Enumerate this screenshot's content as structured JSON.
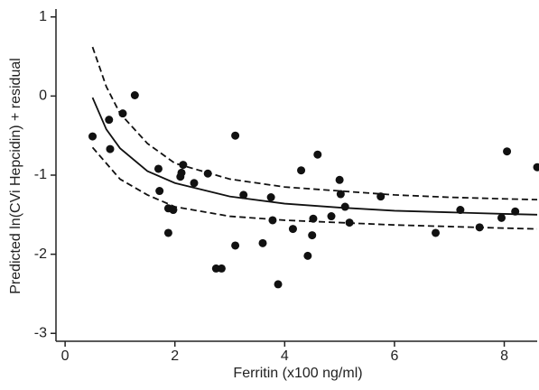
{
  "chart_data": {
    "type": "scatter",
    "xlabel": "Ferritin (x100 ng/ml)",
    "ylabel": "Predicted ln(CVi Hepcidin) + residual",
    "x": [
      0.5,
      0.8,
      0.82,
      1.05,
      1.27,
      1.7,
      1.72,
      1.88,
      1.88,
      1.97,
      2.1,
      2.12,
      2.15,
      2.35,
      2.6,
      2.75,
      2.85,
      3.1,
      3.1,
      3.25,
      3.6,
      3.75,
      3.78,
      3.88,
      4.15,
      4.3,
      4.42,
      4.5,
      4.52,
      4.6,
      4.85,
      5.0,
      5.02,
      5.1,
      5.18,
      5.75,
      6.75,
      7.2,
      7.55,
      7.95,
      8.05,
      8.2,
      8.6
    ],
    "values": [
      -0.51,
      -0.3,
      -0.67,
      -0.22,
      0.01,
      -0.92,
      -1.2,
      -1.42,
      -1.73,
      -1.44,
      -1.02,
      -0.97,
      -0.87,
      -1.1,
      -0.98,
      -2.18,
      -2.18,
      -0.5,
      -1.89,
      -1.25,
      -1.86,
      -1.28,
      -1.57,
      -2.38,
      -1.68,
      -0.94,
      -2.02,
      -1.76,
      -1.55,
      -0.74,
      -1.52,
      -1.06,
      -1.24,
      -1.4,
      -1.6,
      -1.27,
      -1.73,
      -1.44,
      -1.66,
      -1.54,
      -0.7,
      -1.46,
      -0.9
    ],
    "color": "#111111",
    "series": [
      {
        "x": [
          0.5,
          0.75,
          1.0,
          1.5,
          2,
          3,
          4,
          5,
          6,
          7,
          8,
          8.6
        ],
        "values": [
          -0.02,
          -0.42,
          -0.66,
          -0.95,
          -1.1,
          -1.27,
          -1.36,
          -1.41,
          -1.45,
          -1.47,
          -1.49,
          -1.5
        ],
        "color": "#111111",
        "dashed": false
      },
      {
        "x": [
          0.5,
          0.75,
          1.0,
          1.5,
          2,
          3,
          4,
          5,
          6,
          7,
          8,
          8.6
        ],
        "values": [
          0.62,
          0.12,
          -0.22,
          -0.6,
          -0.85,
          -1.05,
          -1.15,
          -1.2,
          -1.25,
          -1.28,
          -1.3,
          -1.31
        ],
        "color": "#111111",
        "dashed": true
      },
      {
        "x": [
          0.5,
          0.75,
          1.0,
          1.5,
          2,
          3,
          4,
          5,
          6,
          7,
          8,
          8.6
        ],
        "values": [
          -0.65,
          -0.85,
          -1.05,
          -1.25,
          -1.4,
          -1.52,
          -1.57,
          -1.6,
          -1.63,
          -1.65,
          -1.67,
          -1.68
        ],
        "color": "#111111",
        "dashed": true
      }
    ],
    "xlim": [
      -0.15,
      8.6
    ],
    "ylim": [
      -3.1,
      1.1
    ],
    "xticks": [
      0,
      2,
      4,
      6,
      8
    ],
    "yticks": [
      -3,
      -2,
      -1,
      0,
      1
    ]
  }
}
